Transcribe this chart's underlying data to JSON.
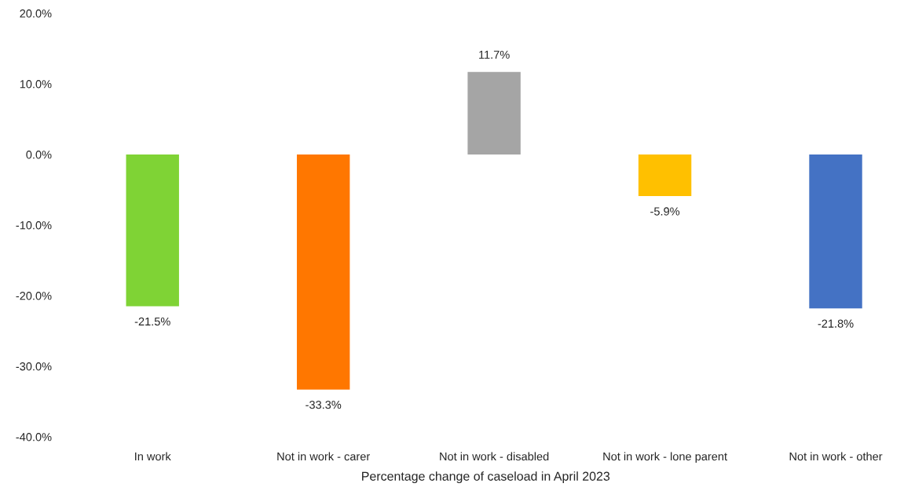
{
  "chart_data": {
    "type": "bar",
    "xlabel": "Percentage change of caseload in April 2023",
    "categories": [
      "In work",
      "Not in work - carer",
      "Not in work - disabled",
      "Not in work - lone parent",
      "Not in work - other"
    ],
    "values": [
      -21.5,
      -33.3,
      11.7,
      -5.9,
      -21.8
    ],
    "value_labels": [
      "-21.5%",
      "-33.3%",
      "11.7%",
      "-5.9%",
      "-21.8%"
    ],
    "colors": [
      "#7fd335",
      "#ff7700",
      "#a5a5a5",
      "#ffc000",
      "#4472c4"
    ],
    "ylim": [
      -40,
      20
    ],
    "yticks": [
      {
        "value": -40,
        "label": "-40.0%"
      },
      {
        "value": -30,
        "label": "-30.0%"
      },
      {
        "value": -20,
        "label": "-20.0%"
      },
      {
        "value": -10,
        "label": "-10.0%"
      },
      {
        "value": 0,
        "label": "0.0%"
      },
      {
        "value": 10,
        "label": "10.0%"
      },
      {
        "value": 20,
        "label": "20.0%"
      }
    ],
    "grid": false
  }
}
